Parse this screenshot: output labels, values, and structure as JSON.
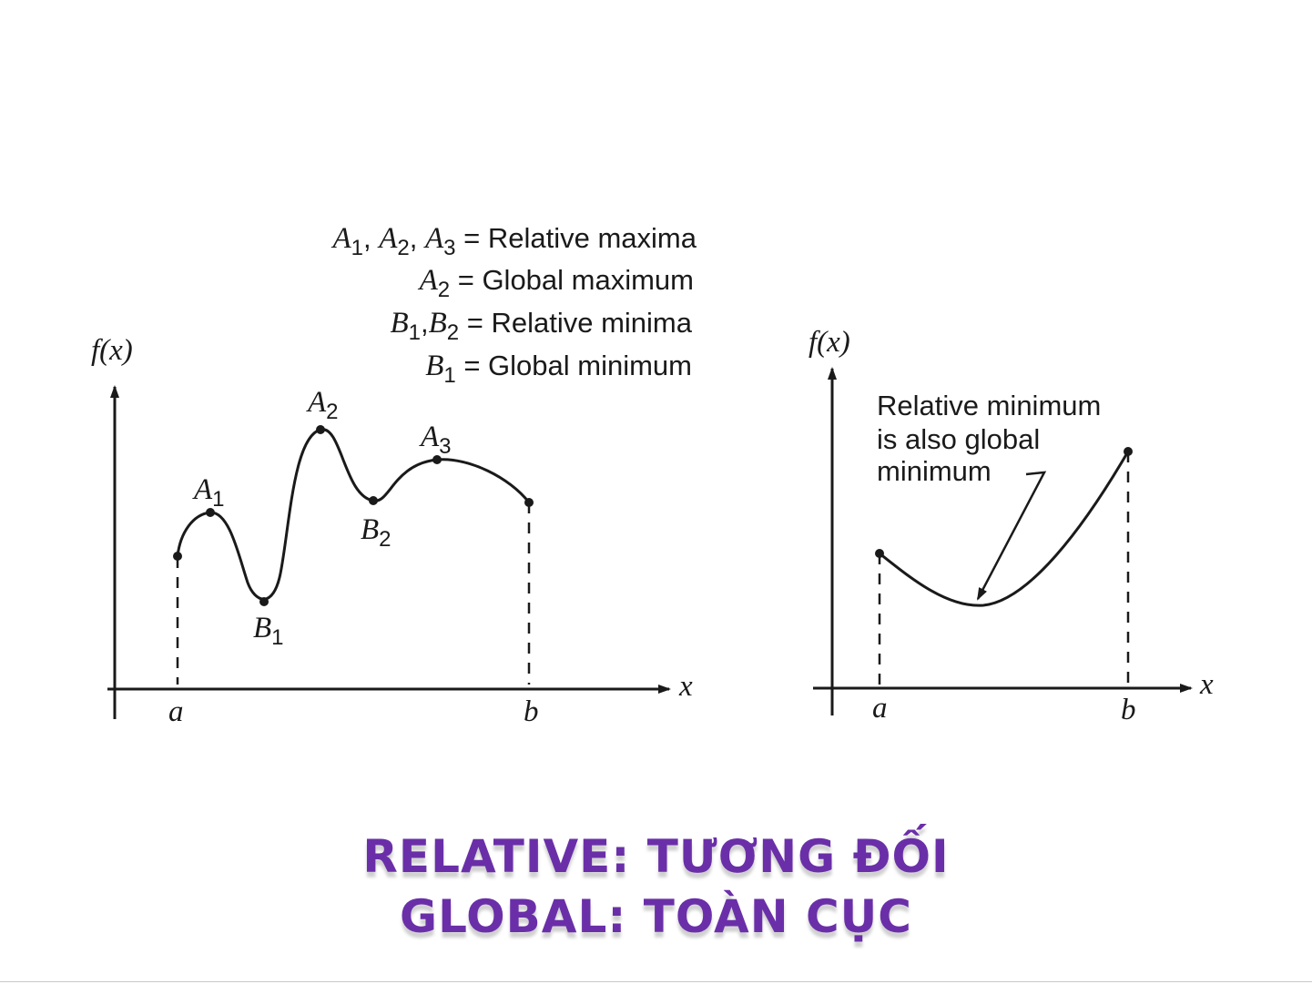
{
  "left_graph": {
    "y_axis_label": "f(x)",
    "x_axis_label": "x",
    "tick_a": "a",
    "tick_b": "b",
    "legend": [
      {
        "lhs": [
          "A1",
          "A2",
          "A3"
        ],
        "rhs": "= Relative maxima"
      },
      {
        "lhs": [
          "A2"
        ],
        "rhs": "= Global maximum"
      },
      {
        "lhs": [
          "B1",
          "B2"
        ],
        "rhs": "= Relative minima"
      },
      {
        "lhs": [
          "B1"
        ],
        "rhs": "= Global minimum"
      }
    ],
    "points": {
      "A1": {
        "letter": "A",
        "sub": "1"
      },
      "A2": {
        "letter": "A",
        "sub": "2"
      },
      "A3": {
        "letter": "A",
        "sub": "3"
      },
      "B1": {
        "letter": "B",
        "sub": "1"
      },
      "B2": {
        "letter": "B",
        "sub": "2"
      }
    }
  },
  "right_graph": {
    "y_axis_label": "f(x)",
    "x_axis_label": "x",
    "tick_a": "a",
    "tick_b": "b",
    "annotation": [
      "Relative minimum",
      "is also global",
      "minimum"
    ]
  },
  "captions": {
    "line1": "RELATIVE: TƯƠNG ĐỐI",
    "line2": "GLOBAL: TOÀN CỤC"
  },
  "colors": {
    "caption": "#6a2fa8",
    "ink": "#1a1a1a"
  }
}
